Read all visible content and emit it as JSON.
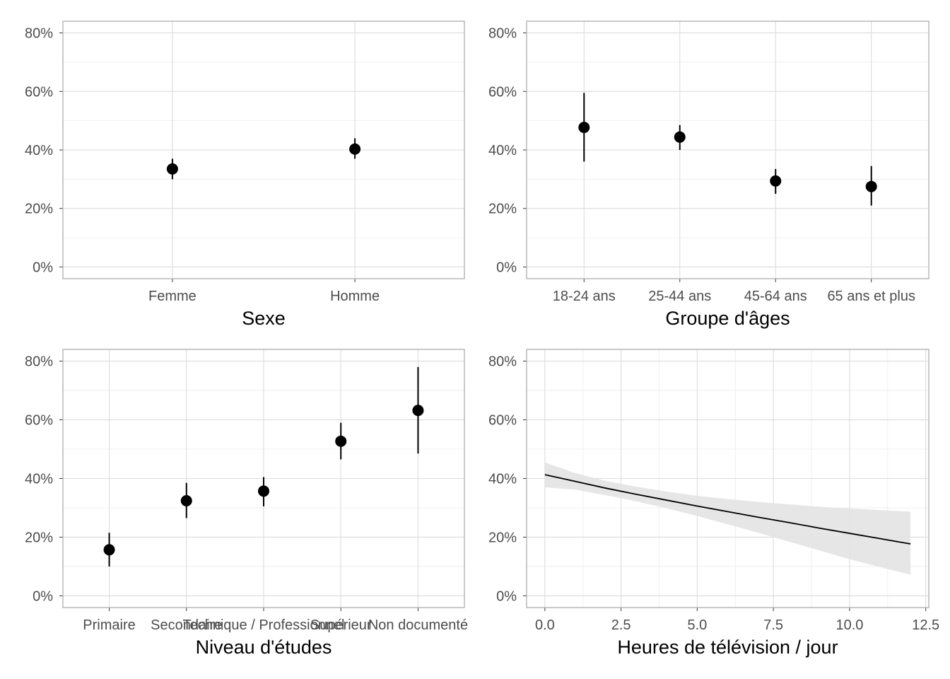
{
  "chart_data": [
    {
      "type": "scatter",
      "variant": "point-range",
      "xlabel": "Sexe",
      "ylabel": "",
      "categories": [
        "Femme",
        "Homme"
      ],
      "values": [
        0.335,
        0.403
      ],
      "lower": [
        0.3,
        0.37
      ],
      "upper": [
        0.37,
        0.44
      ],
      "ylim": [
        -0.04,
        0.84
      ],
      "yticks": [
        0,
        0.2,
        0.4,
        0.6,
        0.8
      ],
      "ytick_labels": [
        "0%",
        "20%",
        "40%",
        "60%",
        "80%"
      ],
      "grid": true
    },
    {
      "type": "scatter",
      "variant": "point-range",
      "xlabel": "Groupe d'âges",
      "ylabel": "",
      "categories": [
        "18-24 ans",
        "25-44 ans",
        "45-64 ans",
        "65 ans et plus"
      ],
      "values": [
        0.477,
        0.444,
        0.294,
        0.275
      ],
      "lower": [
        0.36,
        0.4,
        0.25,
        0.21
      ],
      "upper": [
        0.595,
        0.485,
        0.335,
        0.345
      ],
      "ylim": [
        -0.04,
        0.84
      ],
      "yticks": [
        0,
        0.2,
        0.4,
        0.6,
        0.8
      ],
      "ytick_labels": [
        "0%",
        "20%",
        "40%",
        "60%",
        "80%"
      ],
      "grid": true
    },
    {
      "type": "scatter",
      "variant": "point-range",
      "xlabel": "Niveau d'études",
      "ylabel": "",
      "categories": [
        "Primaire",
        "Secondaire",
        "Technique / Professionnel",
        "Supérieur",
        "Non documenté"
      ],
      "values": [
        0.157,
        0.324,
        0.357,
        0.527,
        0.632
      ],
      "lower": [
        0.1,
        0.265,
        0.305,
        0.465,
        0.485
      ],
      "upper": [
        0.215,
        0.385,
        0.405,
        0.59,
        0.78
      ],
      "ylim": [
        -0.04,
        0.84
      ],
      "yticks": [
        0,
        0.2,
        0.4,
        0.6,
        0.8
      ],
      "ytick_labels": [
        "0%",
        "20%",
        "40%",
        "60%",
        "80%"
      ],
      "grid": true
    },
    {
      "type": "line",
      "variant": "line-with-ribbon",
      "xlabel": "Heures de télévision / jour",
      "ylabel": "",
      "x": [
        0,
        1,
        2,
        3,
        4,
        5,
        6,
        7,
        8,
        9,
        10,
        11,
        12
      ],
      "y": [
        0.413,
        0.39,
        0.367,
        0.346,
        0.326,
        0.306,
        0.287,
        0.268,
        0.25,
        0.231,
        0.213,
        0.195,
        0.177
      ],
      "lower": [
        0.37,
        0.362,
        0.343,
        0.322,
        0.298,
        0.272,
        0.244,
        0.215,
        0.185,
        0.155,
        0.125,
        0.098,
        0.072
      ],
      "upper": [
        0.455,
        0.418,
        0.392,
        0.372,
        0.355,
        0.341,
        0.33,
        0.32,
        0.312,
        0.304,
        0.298,
        0.292,
        0.287
      ],
      "xlim": [
        -0.6,
        12.6
      ],
      "xticks": [
        0,
        2.5,
        5,
        7.5,
        10,
        12.5
      ],
      "xtick_labels": [
        "0.0",
        "2.5",
        "5.0",
        "7.5",
        "10.0",
        "12.5"
      ],
      "ylim": [
        -0.04,
        0.84
      ],
      "yticks": [
        0,
        0.2,
        0.4,
        0.6,
        0.8
      ],
      "ytick_labels": [
        "0%",
        "20%",
        "40%",
        "60%",
        "80%"
      ],
      "grid": true
    }
  ]
}
